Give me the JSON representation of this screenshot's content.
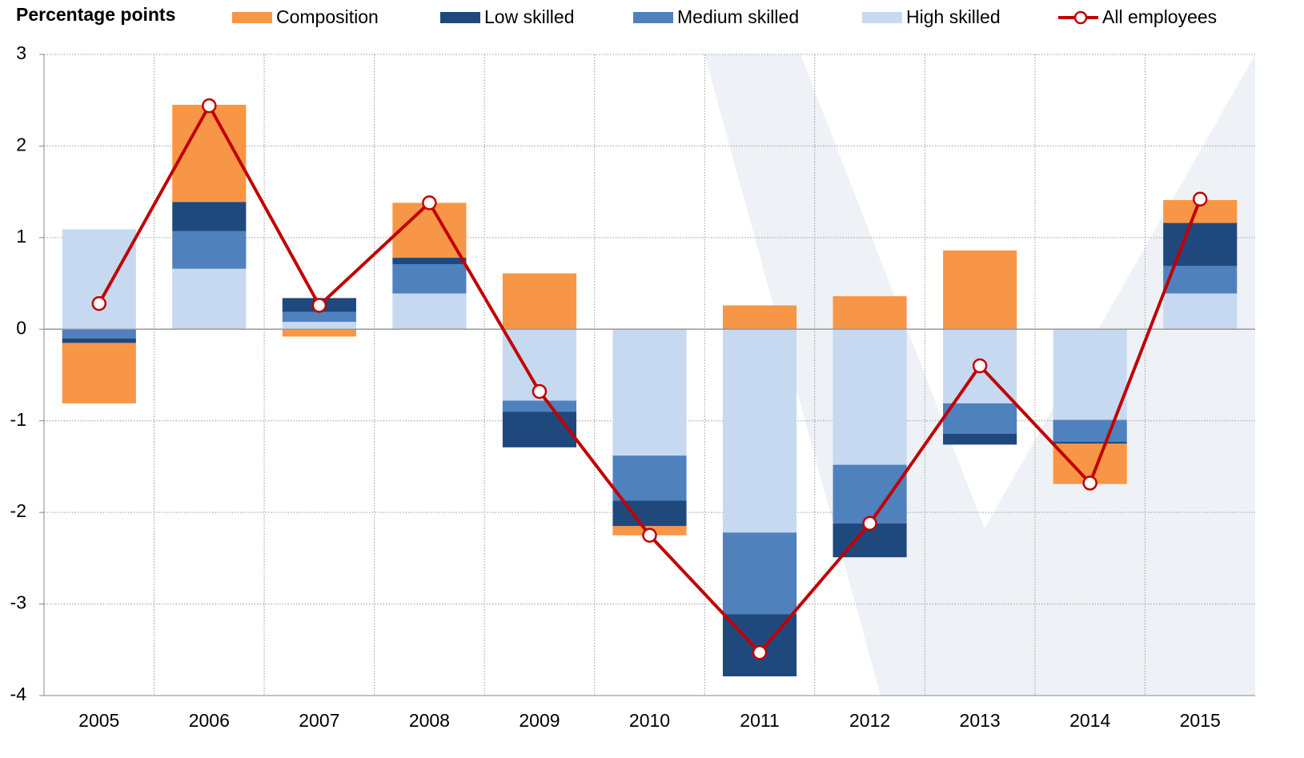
{
  "chart_data": {
    "type": "stacked_bar_line",
    "y_axis_label": "Percentage points",
    "categories": [
      "2005",
      "2006",
      "2007",
      "2008",
      "2009",
      "2010",
      "2011",
      "2012",
      "2013",
      "2014",
      "2015"
    ],
    "series": [
      {
        "name": "Composition",
        "color": "#f79646",
        "values": [
          -0.66,
          1.06,
          -0.08,
          0.6,
          0.61,
          -0.1,
          0.26,
          0.36,
          0.86,
          -0.44,
          0.25
        ]
      },
      {
        "name": "Low skilled",
        "color": "#1f497d",
        "values": [
          -0.05,
          0.32,
          0.15,
          0.07,
          -0.39,
          -0.28,
          -0.68,
          -0.37,
          -0.12,
          -0.02,
          0.47
        ]
      },
      {
        "name": "Medium skilled",
        "color": "#4f81bd",
        "values": [
          -0.1,
          0.41,
          0.11,
          0.32,
          -0.12,
          -0.49,
          -0.89,
          -0.64,
          -0.33,
          -0.24,
          0.3
        ]
      },
      {
        "name": "High skilled",
        "color": "#c6d9f1",
        "values": [
          1.09,
          0.66,
          0.08,
          0.39,
          -0.78,
          -1.38,
          -2.22,
          -1.48,
          -0.81,
          -0.99,
          0.39
        ]
      },
      {
        "name": "All employees",
        "type": "line",
        "color": "#c00000",
        "values": [
          0.28,
          2.44,
          0.26,
          1.38,
          -0.68,
          -2.25,
          -3.53,
          -2.12,
          -0.4,
          -1.68,
          1.42
        ]
      }
    ],
    "ylim": [
      -4,
      3
    ],
    "yticks": [
      -4,
      -3,
      -2,
      -1,
      0,
      1,
      2,
      3
    ],
    "grid": true
  }
}
